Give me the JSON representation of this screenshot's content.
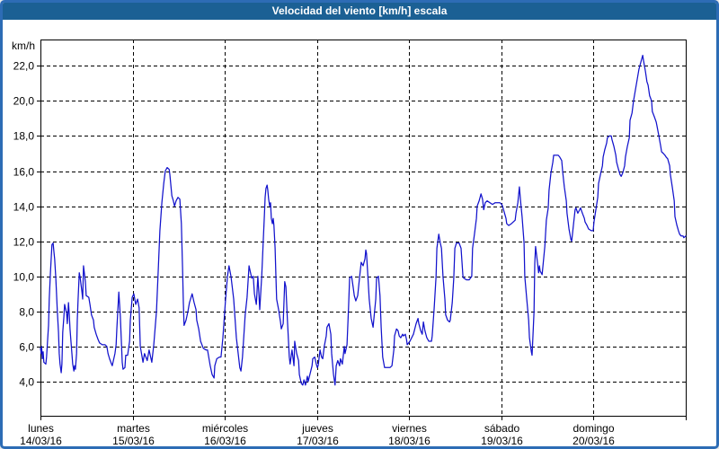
{
  "window": {
    "title": "Velocidad del viento [km/h] escala"
  },
  "colors": {
    "titlebar_bg": "#1b6094",
    "titlebar_text": "#ffffff",
    "frame_border": "#2d6cb5",
    "background": "#ffffff",
    "line": "#1212cc",
    "grid": "#000000",
    "text": "#000000"
  },
  "chart_data": {
    "type": "line",
    "title": "Velocidad del viento [km/h] escala",
    "ylabel": "km/h",
    "series_name": "Velocidad del viento",
    "grid": "dashed",
    "legend": "none",
    "x_axis": {
      "unit": "hours",
      "range_hours": 168,
      "ticks": [
        {
          "day": "lunes",
          "date": "14/03/16"
        },
        {
          "day": "martes",
          "date": "15/03/16"
        },
        {
          "day": "miércoles",
          "date": "16/03/16"
        },
        {
          "day": "jueves",
          "date": "17/03/16"
        },
        {
          "day": "viernes",
          "date": "18/03/16"
        },
        {
          "day": "sábado",
          "date": "19/03/16"
        },
        {
          "day": "domingo",
          "date": "20/03/16"
        }
      ]
    },
    "y_axis": {
      "min": 2.05,
      "max": 23.5,
      "tick_values": [
        4,
        6,
        8,
        10,
        12,
        14,
        16,
        18,
        20,
        22
      ],
      "tick_labels": [
        "4,0",
        "6,0",
        "8,0",
        "10,0",
        "12,0",
        "14,0",
        "16,0",
        "18,0",
        "20,0",
        "22,0"
      ]
    },
    "points": [
      [
        0,
        5.9
      ],
      [
        0.2,
        5.6
      ],
      [
        0.3,
        6.0
      ],
      [
        0.5,
        5.3
      ],
      [
        0.7,
        5.7
      ],
      [
        0.9,
        5.1
      ],
      [
        1.4,
        5.0
      ],
      [
        1.6,
        5.4
      ],
      [
        2.1,
        7.2
      ],
      [
        2.3,
        8.7
      ],
      [
        2.6,
        10.2
      ],
      [
        3.0,
        11.8
      ],
      [
        3.3,
        11.9
      ],
      [
        3.5,
        11.4
      ],
      [
        3.7,
        11.0
      ],
      [
        4.0,
        9.9
      ],
      [
        4.4,
        8.0
      ],
      [
        4.7,
        6.8
      ],
      [
        4.9,
        5.6
      ],
      [
        5.1,
        5.0
      ],
      [
        5.4,
        4.5
      ],
      [
        5.6,
        5.0
      ],
      [
        5.8,
        6.8
      ],
      [
        6.1,
        7.7
      ],
      [
        6.3,
        8.4
      ],
      [
        6.8,
        7.9
      ],
      [
        7.0,
        7.3
      ],
      [
        7.3,
        8.5
      ],
      [
        7.5,
        7.8
      ],
      [
        7.7,
        7.0
      ],
      [
        8.2,
        5.6
      ],
      [
        8.4,
        5.0
      ],
      [
        8.7,
        4.6
      ],
      [
        8.9,
        4.9
      ],
      [
        9.1,
        4.7
      ],
      [
        9.4,
        5.6
      ],
      [
        9.6,
        7.5
      ],
      [
        9.8,
        8.7
      ],
      [
        10.1,
        10.2
      ],
      [
        10.3,
        10.0
      ],
      [
        10.8,
        9.1
      ],
      [
        11.0,
        8.7
      ],
      [
        11.2,
        10.6
      ],
      [
        11.7,
        9.7
      ],
      [
        11.9,
        8.9
      ],
      [
        12.6,
        8.8
      ],
      [
        12.9,
        8.4
      ],
      [
        13.3,
        7.8
      ],
      [
        13.8,
        7.5
      ],
      [
        14.0,
        7.1
      ],
      [
        14.5,
        6.7
      ],
      [
        15.0,
        6.4
      ],
      [
        15.4,
        6.2
      ],
      [
        16.1,
        6.1
      ],
      [
        16.8,
        6.1
      ],
      [
        17.3,
        6.0
      ],
      [
        17.6,
        5.6
      ],
      [
        18.0,
        5.3
      ],
      [
        18.5,
        5.0
      ],
      [
        18.7,
        4.9
      ],
      [
        19.4,
        5.6
      ],
      [
        19.7,
        6.1
      ],
      [
        19.9,
        7.0
      ],
      [
        20.4,
        9.1
      ],
      [
        20.8,
        7.7
      ],
      [
        21.1,
        6.1
      ],
      [
        21.3,
        5.1
      ],
      [
        21.5,
        4.7
      ],
      [
        22.0,
        4.8
      ],
      [
        22.2,
        5.5
      ],
      [
        22.7,
        5.5
      ],
      [
        23.2,
        6.3
      ],
      [
        23.4,
        7.5
      ],
      [
        23.9,
        8.8
      ],
      [
        24.3,
        9.0
      ],
      [
        24.8,
        8.4
      ],
      [
        25.3,
        8.7
      ],
      [
        25.7,
        8.2
      ],
      [
        26.0,
        6.0
      ],
      [
        26.7,
        5.1
      ],
      [
        27.1,
        5.6
      ],
      [
        27.8,
        5.2
      ],
      [
        28.3,
        5.8
      ],
      [
        29.0,
        5.1
      ],
      [
        29.5,
        6.1
      ],
      [
        30.2,
        8.0
      ],
      [
        30.7,
        10.5
      ],
      [
        31.1,
        12.6
      ],
      [
        31.6,
        14.2
      ],
      [
        32.1,
        15.3
      ],
      [
        32.5,
        16.0
      ],
      [
        33.0,
        16.2
      ],
      [
        33.5,
        16.1
      ],
      [
        33.7,
        15.8
      ],
      [
        34.2,
        14.6
      ],
      [
        34.6,
        14.3
      ],
      [
        34.9,
        14.0
      ],
      [
        35.3,
        14.3
      ],
      [
        35.8,
        14.5
      ],
      [
        36.3,
        14.4
      ],
      [
        36.7,
        13.0
      ],
      [
        37.0,
        10.5
      ],
      [
        37.2,
        8.5
      ],
      [
        37.4,
        7.2
      ],
      [
        37.9,
        7.5
      ],
      [
        38.4,
        8.0
      ],
      [
        38.8,
        8.5
      ],
      [
        39.5,
        9.0
      ],
      [
        40.0,
        8.5
      ],
      [
        40.5,
        8.1
      ],
      [
        40.7,
        7.5
      ],
      [
        41.2,
        7.0
      ],
      [
        41.7,
        6.3
      ],
      [
        42.4,
        5.9
      ],
      [
        43.1,
        5.8
      ],
      [
        43.5,
        5.8
      ],
      [
        44.2,
        4.9
      ],
      [
        44.7,
        4.4
      ],
      [
        45.2,
        4.2
      ],
      [
        45.4,
        4.9
      ],
      [
        45.9,
        5.3
      ],
      [
        46.6,
        5.4
      ],
      [
        47.0,
        5.4
      ],
      [
        47.5,
        6.5
      ],
      [
        48.2,
        8.7
      ],
      [
        48.7,
        10.0
      ],
      [
        49.1,
        10.6
      ],
      [
        49.6,
        10.0
      ],
      [
        50.3,
        8.7
      ],
      [
        51.0,
        6.5
      ],
      [
        51.9,
        4.8
      ],
      [
        52.2,
        4.6
      ],
      [
        52.6,
        5.4
      ],
      [
        53.3,
        7.8
      ],
      [
        53.8,
        8.8
      ],
      [
        54.3,
        10.6
      ],
      [
        54.5,
        10.4
      ],
      [
        55.0,
        9.9
      ],
      [
        55.4,
        10.0
      ],
      [
        55.7,
        9.0
      ],
      [
        56.2,
        8.4
      ],
      [
        56.6,
        10.0
      ],
      [
        56.9,
        8.9
      ],
      [
        57.1,
        8.1
      ],
      [
        57.6,
        10.0
      ],
      [
        58.0,
        12.0
      ],
      [
        58.3,
        13.5
      ],
      [
        58.5,
        14.5
      ],
      [
        58.7,
        15.0
      ],
      [
        59.0,
        15.2
      ],
      [
        59.2,
        14.9
      ],
      [
        59.4,
        14.4
      ],
      [
        59.7,
        14.0
      ],
      [
        59.9,
        14.2
      ],
      [
        60.1,
        13.3
      ],
      [
        60.4,
        13.0
      ],
      [
        60.6,
        13.3
      ],
      [
        60.8,
        12.9
      ],
      [
        61.1,
        11.6
      ],
      [
        61.3,
        10.0
      ],
      [
        61.5,
        8.7
      ],
      [
        62.0,
        8.1
      ],
      [
        62.5,
        7.4
      ],
      [
        62.7,
        7.0
      ],
      [
        63.2,
        7.3
      ],
      [
        63.6,
        9.7
      ],
      [
        63.9,
        9.4
      ],
      [
        64.3,
        7.5
      ],
      [
        64.8,
        5.4
      ],
      [
        65.0,
        5.0
      ],
      [
        65.5,
        5.8
      ],
      [
        66.0,
        4.9
      ],
      [
        66.2,
        6.3
      ],
      [
        66.7,
        5.6
      ],
      [
        67.2,
        5.2
      ],
      [
        67.4,
        4.4
      ],
      [
        67.9,
        3.9
      ],
      [
        68.3,
        3.8
      ],
      [
        68.6,
        4.1
      ],
      [
        69.0,
        3.8
      ],
      [
        69.5,
        4.3
      ],
      [
        69.7,
        4.0
      ],
      [
        70.7,
        4.9
      ],
      [
        70.9,
        5.3
      ],
      [
        71.4,
        5.4
      ],
      [
        71.8,
        5.0
      ],
      [
        72.1,
        4.8
      ],
      [
        72.3,
        4.9
      ],
      [
        72.8,
        5.8
      ],
      [
        73.2,
        5.4
      ],
      [
        73.5,
        5.3
      ],
      [
        73.9,
        6.0
      ],
      [
        74.4,
        6.6
      ],
      [
        74.6,
        7.1
      ],
      [
        75.1,
        7.3
      ],
      [
        75.6,
        6.7
      ],
      [
        75.8,
        5.6
      ],
      [
        76.3,
        4.4
      ],
      [
        76.7,
        3.8
      ],
      [
        77.0,
        4.9
      ],
      [
        77.4,
        5.2
      ],
      [
        77.9,
        4.9
      ],
      [
        78.1,
        5.3
      ],
      [
        78.6,
        5.0
      ],
      [
        79.1,
        6.0
      ],
      [
        79.3,
        5.6
      ],
      [
        79.8,
        6.1
      ],
      [
        80.2,
        8.2
      ],
      [
        80.5,
        9.9
      ],
      [
        81.0,
        10.0
      ],
      [
        81.4,
        9.4
      ],
      [
        81.7,
        8.9
      ],
      [
        82.1,
        8.6
      ],
      [
        82.6,
        8.9
      ],
      [
        83.1,
        10.0
      ],
      [
        83.5,
        10.8
      ],
      [
        84.0,
        10.6
      ],
      [
        84.5,
        11.0
      ],
      [
        84.7,
        11.5
      ],
      [
        84.9,
        11.3
      ],
      [
        85.2,
        10.2
      ],
      [
        85.6,
        8.7
      ],
      [
        86.1,
        7.6
      ],
      [
        86.6,
        7.1
      ],
      [
        87.3,
        8.7
      ],
      [
        87.5,
        9.9
      ],
      [
        88.0,
        10.0
      ],
      [
        88.4,
        8.9
      ],
      [
        88.7,
        7.1
      ],
      [
        89.1,
        5.4
      ],
      [
        89.6,
        4.8
      ],
      [
        90.3,
        4.8
      ],
      [
        91.0,
        4.8
      ],
      [
        91.5,
        4.9
      ],
      [
        92.0,
        5.8
      ],
      [
        92.2,
        6.6
      ],
      [
        92.7,
        7.0
      ],
      [
        93.1,
        6.9
      ],
      [
        93.4,
        6.6
      ],
      [
        93.8,
        6.5
      ],
      [
        94.3,
        6.7
      ],
      [
        94.5,
        6.6
      ],
      [
        95.0,
        6.7
      ],
      [
        95.3,
        6.4
      ],
      [
        95.5,
        6.1
      ],
      [
        96.2,
        6.3
      ],
      [
        97.1,
        6.7
      ],
      [
        97.8,
        7.3
      ],
      [
        98.3,
        7.6
      ],
      [
        98.5,
        7.3
      ],
      [
        99.0,
        6.9
      ],
      [
        99.4,
        6.7
      ],
      [
        99.7,
        7.4
      ],
      [
        100.1,
        6.9
      ],
      [
        100.6,
        6.5
      ],
      [
        101.1,
        6.3
      ],
      [
        101.8,
        6.3
      ],
      [
        102.0,
        6.6
      ],
      [
        102.5,
        8.2
      ],
      [
        103.0,
        10.0
      ],
      [
        103.2,
        11.6
      ],
      [
        103.7,
        12.4
      ],
      [
        104.1,
        11.9
      ],
      [
        104.4,
        11.6
      ],
      [
        104.8,
        10.0
      ],
      [
        105.3,
        8.7
      ],
      [
        105.5,
        7.8
      ],
      [
        106.0,
        7.5
      ],
      [
        106.5,
        7.4
      ],
      [
        106.7,
        7.5
      ],
      [
        107.2,
        8.5
      ],
      [
        107.6,
        9.9
      ],
      [
        107.9,
        11.6
      ],
      [
        108.3,
        11.9
      ],
      [
        109.0,
        11.9
      ],
      [
        109.5,
        11.6
      ],
      [
        110.0,
        10.0
      ],
      [
        110.2,
        9.9
      ],
      [
        110.9,
        9.8
      ],
      [
        111.6,
        9.8
      ],
      [
        112.3,
        10.0
      ],
      [
        112.5,
        11.6
      ],
      [
        113.0,
        12.4
      ],
      [
        113.5,
        13.3
      ],
      [
        113.7,
        14.0
      ],
      [
        114.2,
        14.3
      ],
      [
        114.7,
        14.7
      ],
      [
        115.1,
        14.4
      ],
      [
        115.4,
        13.8
      ],
      [
        115.8,
        14.2
      ],
      [
        116.3,
        14.3
      ],
      [
        117.0,
        14.2
      ],
      [
        117.7,
        14.1
      ],
      [
        118.4,
        14.2
      ],
      [
        119.1,
        14.2
      ],
      [
        119.6,
        14.2
      ],
      [
        120.1,
        14.1
      ],
      [
        120.3,
        14.0
      ],
      [
        120.7,
        13.7
      ],
      [
        121.2,
        13.3
      ],
      [
        121.4,
        13.0
      ],
      [
        121.9,
        12.9
      ],
      [
        122.6,
        13.0
      ],
      [
        123.6,
        13.2
      ],
      [
        123.8,
        13.6
      ],
      [
        124.3,
        14.2
      ],
      [
        124.7,
        15.1
      ],
      [
        125.0,
        14.3
      ],
      [
        125.4,
        13.4
      ],
      [
        125.9,
        11.9
      ],
      [
        126.1,
        10.0
      ],
      [
        126.6,
        8.7
      ],
      [
        127.1,
        7.5
      ],
      [
        127.3,
        6.5
      ],
      [
        127.8,
        5.7
      ],
      [
        128.0,
        5.5
      ],
      [
        128.2,
        6.5
      ],
      [
        128.5,
        8.0
      ],
      [
        128.7,
        10.7
      ],
      [
        128.9,
        11.7
      ],
      [
        129.4,
        10.8
      ],
      [
        129.7,
        10.2
      ],
      [
        129.9,
        10.6
      ],
      [
        130.1,
        10.3
      ],
      [
        130.6,
        10.1
      ],
      [
        131.3,
        11.7
      ],
      [
        131.7,
        13.2
      ],
      [
        132.2,
        13.9
      ],
      [
        132.4,
        14.9
      ],
      [
        132.9,
        15.9
      ],
      [
        133.4,
        16.5
      ],
      [
        133.6,
        16.9
      ],
      [
        134.8,
        16.9
      ],
      [
        135.2,
        16.8
      ],
      [
        135.7,
        16.6
      ],
      [
        136.0,
        15.9
      ],
      [
        136.4,
        15.1
      ],
      [
        136.9,
        14.3
      ],
      [
        137.1,
        13.6
      ],
      [
        137.6,
        12.7
      ],
      [
        138.1,
        12.1
      ],
      [
        138.3,
        12.0
      ],
      [
        138.8,
        13.0
      ],
      [
        139.2,
        13.8
      ],
      [
        139.4,
        13.9
      ],
      [
        139.9,
        13.6
      ],
      [
        140.4,
        13.8
      ],
      [
        140.6,
        13.9
      ],
      [
        141.1,
        13.6
      ],
      [
        141.6,
        13.3
      ],
      [
        141.8,
        13.1
      ],
      [
        142.3,
        12.9
      ],
      [
        142.7,
        12.7
      ],
      [
        143.4,
        12.6
      ],
      [
        143.9,
        12.6
      ],
      [
        144.1,
        13.1
      ],
      [
        144.6,
        13.8
      ],
      [
        145.1,
        14.5
      ],
      [
        145.3,
        15.3
      ],
      [
        145.8,
        15.8
      ],
      [
        146.3,
        16.3
      ],
      [
        146.5,
        16.8
      ],
      [
        146.9,
        17.2
      ],
      [
        147.4,
        17.6
      ],
      [
        147.6,
        17.9
      ],
      [
        148.1,
        18.0
      ],
      [
        148.6,
        18.0
      ],
      [
        148.8,
        17.8
      ],
      [
        149.3,
        17.4
      ],
      [
        149.8,
        16.9
      ],
      [
        150.0,
        16.5
      ],
      [
        150.5,
        16.1
      ],
      [
        150.9,
        15.8
      ],
      [
        151.2,
        15.7
      ],
      [
        151.6,
        15.9
      ],
      [
        152.1,
        16.3
      ],
      [
        152.3,
        16.8
      ],
      [
        152.8,
        17.4
      ],
      [
        153.3,
        17.9
      ],
      [
        153.5,
        18.9
      ],
      [
        154.0,
        19.3
      ],
      [
        154.4,
        20.0
      ],
      [
        155.1,
        20.9
      ],
      [
        155.8,
        21.8
      ],
      [
        156.3,
        22.2
      ],
      [
        156.8,
        22.6
      ],
      [
        157.0,
        22.3
      ],
      [
        157.5,
        21.7
      ],
      [
        157.9,
        21.1
      ],
      [
        158.2,
        20.9
      ],
      [
        158.6,
        20.3
      ],
      [
        159.1,
        20.0
      ],
      [
        159.3,
        19.4
      ],
      [
        159.8,
        19.1
      ],
      [
        160.3,
        18.8
      ],
      [
        160.5,
        18.6
      ],
      [
        161.0,
        18.0
      ],
      [
        161.5,
        17.4
      ],
      [
        161.7,
        17.1
      ],
      [
        162.2,
        17.0
      ],
      [
        162.6,
        16.9
      ],
      [
        162.9,
        16.8
      ],
      [
        163.3,
        16.7
      ],
      [
        163.8,
        16.3
      ],
      [
        164.0,
        15.8
      ],
      [
        164.5,
        15.1
      ],
      [
        165.0,
        14.3
      ],
      [
        165.2,
        13.4
      ],
      [
        165.7,
        12.9
      ],
      [
        166.1,
        12.6
      ],
      [
        166.4,
        12.4
      ],
      [
        166.8,
        12.3
      ],
      [
        167.3,
        12.3
      ],
      [
        167.5,
        12.2
      ],
      [
        168,
        12.3
      ]
    ]
  }
}
